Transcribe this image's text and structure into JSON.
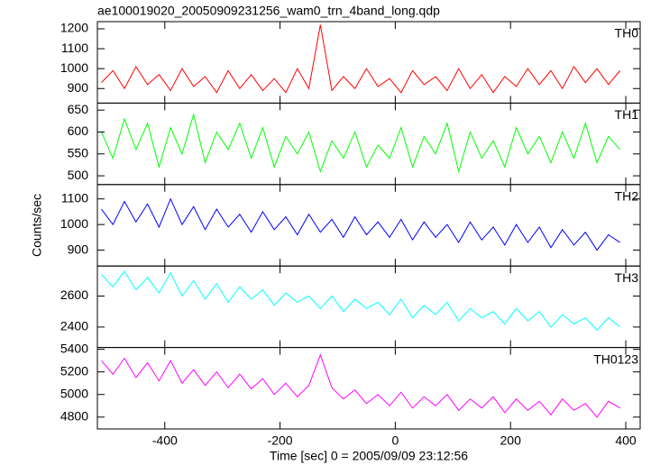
{
  "chart_data": [
    {
      "type": "line",
      "title": "ae100019020_20050909231256_wam0_trn_4band_long.qdp",
      "x": [
        -510,
        -490,
        -470,
        -450,
        -430,
        -410,
        -390,
        -370,
        -350,
        -330,
        -310,
        -290,
        -270,
        -250,
        -230,
        -210,
        -190,
        -170,
        -150,
        -130,
        -110,
        -90,
        -70,
        -50,
        -30,
        -10,
        10,
        30,
        50,
        70,
        90,
        110,
        130,
        150,
        170,
        190,
        210,
        230,
        250,
        270,
        290,
        310,
        330,
        350,
        370,
        390
      ],
      "series": [
        {
          "name": "TH0",
          "color": "#ff0000",
          "values": [
            930,
            990,
            900,
            1010,
            920,
            970,
            890,
            1000,
            910,
            960,
            880,
            990,
            900,
            970,
            890,
            950,
            880,
            1000,
            900,
            1220,
            890,
            960,
            900,
            1000,
            910,
            950,
            880,
            990,
            920,
            960,
            890,
            1000,
            900,
            970,
            880,
            960,
            910,
            1000,
            920,
            990,
            900,
            1010,
            930,
            1000,
            920,
            990
          ]
        }
      ],
      "ylim": [
        827,
        1236
      ],
      "yticks": [
        900,
        1000,
        1100,
        1200
      ]
    },
    {
      "type": "line",
      "x": [
        -510,
        -490,
        -470,
        -450,
        -430,
        -410,
        -390,
        -370,
        -350,
        -330,
        -310,
        -290,
        -270,
        -250,
        -230,
        -210,
        -190,
        -170,
        -150,
        -130,
        -110,
        -90,
        -70,
        -50,
        -30,
        -10,
        10,
        30,
        50,
        70,
        90,
        110,
        130,
        150,
        170,
        190,
        210,
        230,
        250,
        270,
        290,
        310,
        330,
        350,
        370,
        390
      ],
      "series": [
        {
          "name": "TH1",
          "color": "#00ff00",
          "values": [
            600,
            540,
            630,
            560,
            620,
            520,
            610,
            550,
            640,
            530,
            600,
            560,
            620,
            540,
            610,
            520,
            590,
            550,
            600,
            510,
            580,
            540,
            600,
            520,
            570,
            540,
            610,
            520,
            590,
            550,
            620,
            510,
            600,
            540,
            580,
            520,
            610,
            550,
            590,
            530,
            600,
            540,
            620,
            530,
            590,
            560
          ]
        }
      ],
      "ylim": [
        480,
        666
      ],
      "yticks": [
        500,
        550,
        600,
        650
      ]
    },
    {
      "type": "line",
      "ylabel": "Counts/sec",
      "x": [
        -510,
        -490,
        -470,
        -450,
        -430,
        -410,
        -390,
        -370,
        -350,
        -330,
        -310,
        -290,
        -270,
        -250,
        -230,
        -210,
        -190,
        -170,
        -150,
        -130,
        -110,
        -90,
        -70,
        -50,
        -30,
        -10,
        10,
        30,
        50,
        70,
        90,
        110,
        130,
        150,
        170,
        190,
        210,
        230,
        250,
        270,
        290,
        310,
        330,
        350,
        370,
        390
      ],
      "series": [
        {
          "name": "TH2",
          "color": "#0000ff",
          "values": [
            1060,
            1000,
            1090,
            1010,
            1080,
            990,
            1100,
            1000,
            1070,
            980,
            1060,
            990,
            1040,
            970,
            1050,
            980,
            1030,
            960,
            1040,
            970,
            1020,
            950,
            1030,
            960,
            1010,
            950,
            1020,
            940,
            1010,
            950,
            1000,
            930,
            1010,
            940,
            990,
            920,
            1000,
            930,
            990,
            910,
            980,
            920,
            970,
            900,
            960,
            930
          ]
        }
      ],
      "ylim": [
        838,
        1156
      ],
      "yticks": [
        900,
        1000,
        1100
      ]
    },
    {
      "type": "line",
      "x": [
        -510,
        -490,
        -470,
        -450,
        -430,
        -410,
        -390,
        -370,
        -350,
        -330,
        -310,
        -290,
        -270,
        -250,
        -230,
        -210,
        -190,
        -170,
        -150,
        -130,
        -110,
        -90,
        -70,
        -50,
        -30,
        -10,
        10,
        30,
        50,
        70,
        90,
        110,
        130,
        150,
        170,
        190,
        210,
        230,
        250,
        270,
        290,
        310,
        330,
        350,
        370,
        390
      ],
      "series": [
        {
          "name": "TH3",
          "color": "#00ffff",
          "values": [
            2740,
            2660,
            2760,
            2640,
            2720,
            2620,
            2750,
            2600,
            2700,
            2580,
            2680,
            2560,
            2660,
            2580,
            2640,
            2540,
            2620,
            2560,
            2600,
            2520,
            2600,
            2500,
            2580,
            2520,
            2560,
            2480,
            2580,
            2460,
            2540,
            2480,
            2560,
            2440,
            2520,
            2460,
            2500,
            2420,
            2520,
            2440,
            2500,
            2400,
            2480,
            2420,
            2460,
            2380,
            2460,
            2400
          ]
        }
      ],
      "ylim": [
        2268,
        2794
      ],
      "yticks": [
        2400,
        2600
      ]
    },
    {
      "type": "line",
      "xlabel": "Time [sec] 0 = 2005/09/09 23:12:56",
      "x": [
        -510,
        -490,
        -470,
        -450,
        -430,
        -410,
        -390,
        -370,
        -350,
        -330,
        -310,
        -290,
        -270,
        -250,
        -230,
        -210,
        -190,
        -170,
        -150,
        -130,
        -110,
        -90,
        -70,
        -50,
        -30,
        -10,
        10,
        30,
        50,
        70,
        90,
        110,
        130,
        150,
        170,
        190,
        210,
        230,
        250,
        270,
        290,
        310,
        330,
        350,
        370,
        390
      ],
      "series": [
        {
          "name": "TH0123",
          "color": "#ff00ff",
          "values": [
            5300,
            5180,
            5320,
            5150,
            5280,
            5120,
            5300,
            5100,
            5220,
            5080,
            5200,
            5060,
            5180,
            5050,
            5140,
            5000,
            5100,
            4980,
            5080,
            5350,
            5060,
            4960,
            5040,
            4920,
            5000,
            4900,
            5020,
            4880,
            4980,
            4900,
            5000,
            4860,
            4960,
            4880,
            4980,
            4840,
            4960,
            4860,
            4940,
            4820,
            4960,
            4860,
            4920,
            4800,
            4940,
            4880
          ]
        }
      ],
      "ylim": [
        4695,
        5416
      ],
      "yticks": [
        4800,
        5000,
        5200,
        5400
      ],
      "xlim": [
        -517,
        425
      ],
      "xticks": [
        -400,
        -200,
        0,
        200,
        400
      ]
    }
  ]
}
